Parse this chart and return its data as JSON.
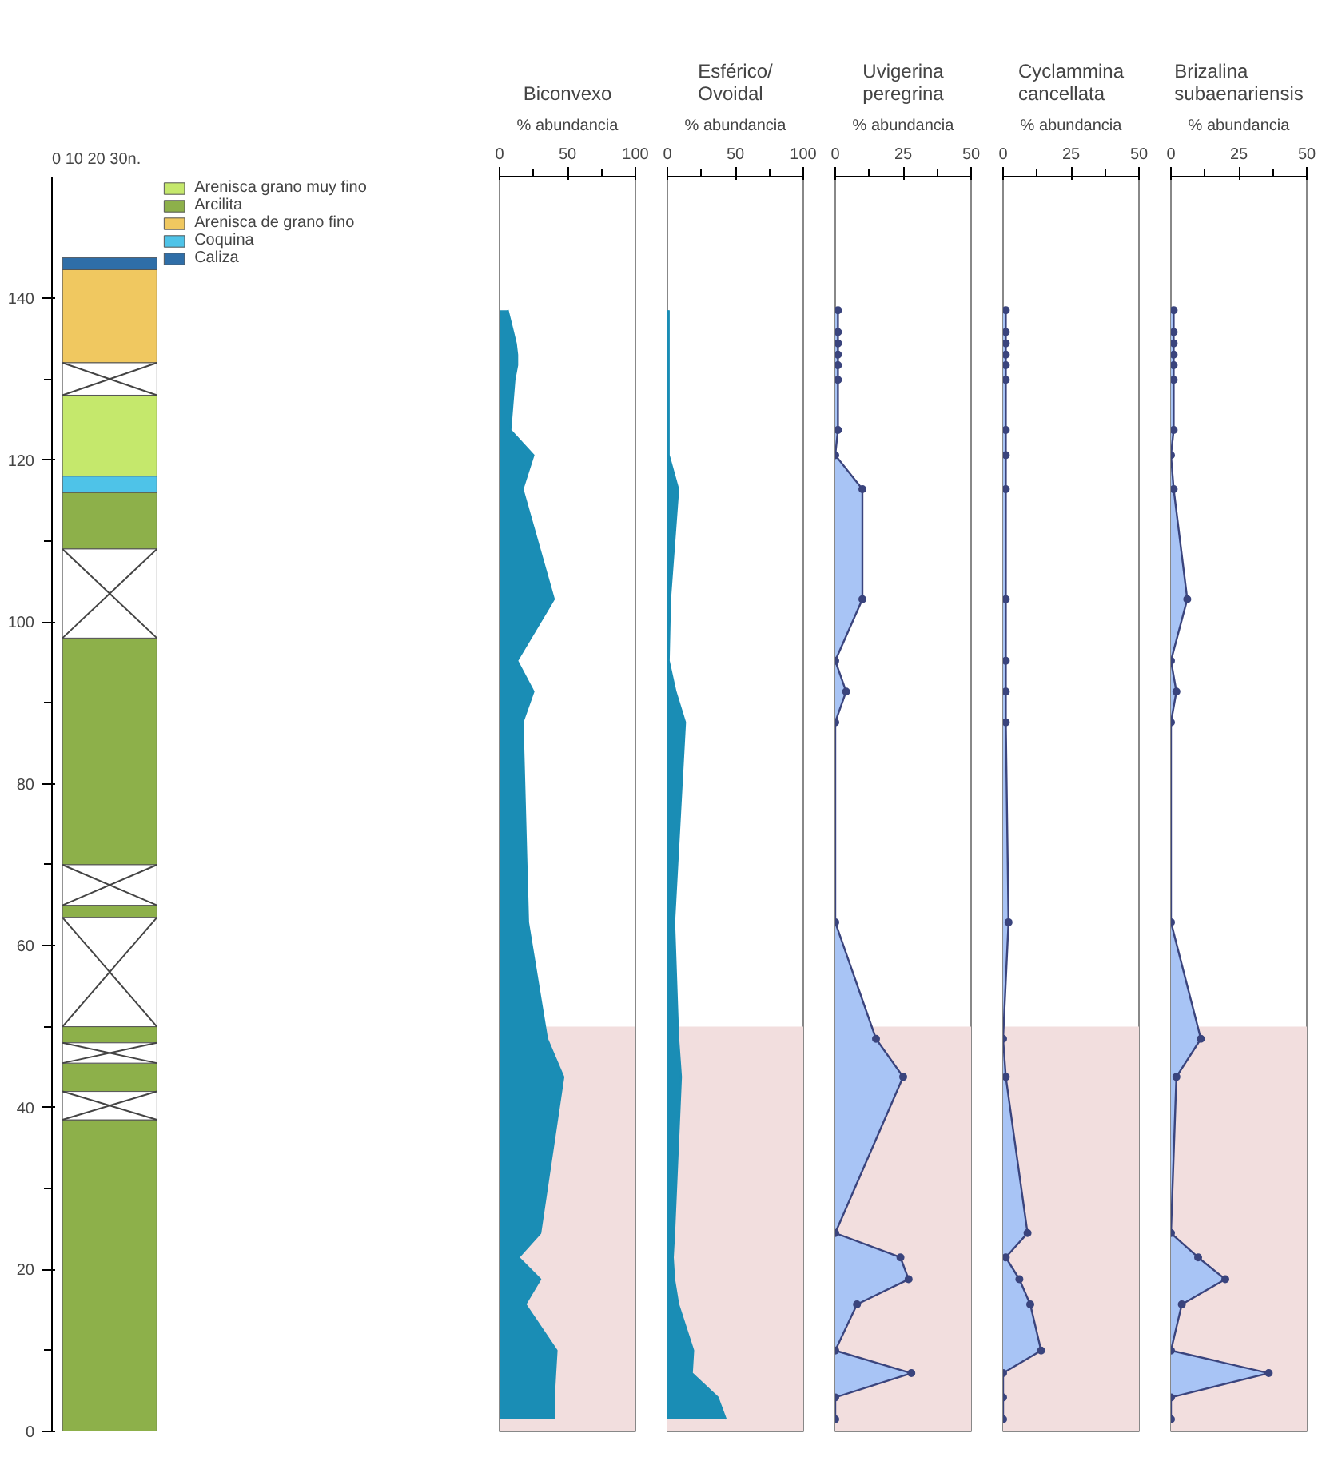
{
  "chart_data": [
    {
      "type": "bar",
      "categories": [
        null
      ],
      "ylim": [
        0,
        155
      ],
      "yticks": [
        0,
        20,
        40,
        60,
        80,
        100,
        120,
        140
      ],
      "tick_labels": "y",
      "legend": "top",
      "annotations": [
        "0   10   20   30n."
      ],
      "series": [
        {
          "name": "Arenisca grano muy fino",
          "color": "#c5e86c",
          "base": [
            118
          ],
          "values": [
            10
          ]
        },
        {
          "name": "Arcilita",
          "color": "#8db04a",
          "base": [
            109
          ],
          "values": [
            7
          ]
        },
        {
          "name": "Arenisca de grano fino",
          "color": "#f0c860",
          "base": [
            132
          ],
          "values": [
            11.5
          ]
        },
        {
          "name": "Coquina",
          "color": "#4ec3e8",
          "base": [
            116
          ],
          "values": [
            2
          ]
        },
        {
          "name": "Caliza",
          "color": "#2f6ea8",
          "base": [
            143.5
          ],
          "values": [
            1.5
          ]
        },
        {
          "color": "#8db04a",
          "base": [
            70
          ],
          "values": [
            28
          ]
        },
        {
          "color": "#8db04a",
          "base": [
            63.5
          ],
          "values": [
            1.5
          ]
        },
        {
          "color": "#8db04a",
          "base": [
            48
          ],
          "values": [
            2
          ]
        },
        {
          "color": "#8db04a",
          "base": [
            42
          ],
          "values": [
            3.5
          ]
        },
        {
          "color": "#8db04a",
          "base": [
            0
          ],
          "values": [
            38.5
          ]
        },
        {
          "color": "#ffffff",
          "base": [
            128
          ],
          "values": [
            4
          ]
        },
        {
          "color": "#ffffff",
          "base": [
            98
          ],
          "values": [
            11
          ]
        },
        {
          "color": "#ffffff",
          "base": [
            65
          ],
          "values": [
            5
          ]
        },
        {
          "color": "#ffffff",
          "base": [
            50
          ],
          "values": [
            13.5
          ]
        },
        {
          "color": "#ffffff",
          "base": [
            45.5
          ],
          "values": [
            2.5
          ]
        },
        {
          "color": "#ffffff",
          "base": [
            38.5
          ],
          "values": [
            3.5
          ]
        }
      ]
    },
    {
      "type": "area",
      "orientation": "horizontal",
      "title": "Biconvexo",
      "xlabel": "% abundancia",
      "xlim": [
        0,
        100
      ],
      "xticks": [
        0,
        50,
        100
      ],
      "ylim": [
        0,
        155
      ],
      "tick_labels": "x",
      "color": "#1a8db5",
      "bands": [
        {
          "axis": "y",
          "from": 0,
          "to": 50,
          "color": "#f2dede"
        }
      ],
      "x": [
        138.5,
        135.8,
        134.4,
        133,
        131.7,
        129.9,
        123.7,
        120.6,
        116.4,
        102.8,
        95.2,
        91.4,
        87.6,
        62.9,
        48.5,
        43.8,
        24.5,
        21.5,
        18.8,
        15.7,
        10,
        7.2,
        4.2,
        1.5
      ],
      "values": [
        6,
        10,
        12,
        13,
        13,
        11,
        8,
        25,
        17,
        40,
        13,
        25,
        17,
        21,
        35,
        47,
        30,
        14,
        30,
        19,
        42,
        41,
        40,
        40
      ]
    },
    {
      "type": "area",
      "orientation": "horizontal",
      "title": "Esférico/ Ovoidal",
      "xlabel": "% abundancia",
      "xlim": [
        0,
        100
      ],
      "xticks": [
        0,
        50,
        100
      ],
      "ylim": [
        0,
        155
      ],
      "tick_labels": "x",
      "color": "#1a8db5",
      "bands": [
        {
          "axis": "y",
          "from": 0,
          "to": 50,
          "color": "#f2dede"
        }
      ],
      "x": [
        138.5,
        135.8,
        134.4,
        133,
        131.7,
        129.9,
        123.7,
        120.6,
        116.4,
        102.8,
        95.2,
        91.4,
        87.6,
        62.9,
        48.5,
        43.8,
        24.5,
        21.5,
        18.8,
        15.7,
        10,
        7.2,
        4.2,
        1.5
      ],
      "values": [
        1,
        1,
        1,
        1,
        1,
        1,
        1,
        1,
        8,
        2,
        1,
        6,
        13,
        5,
        8,
        10,
        5,
        4,
        5,
        8,
        19,
        18,
        37,
        43
      ]
    },
    {
      "type": "area",
      "orientation": "horizontal",
      "title": "Uvigerina peregrina",
      "xlabel": "% abundancia",
      "xlim": [
        0,
        50
      ],
      "xticks": [
        0,
        25,
        50
      ],
      "ylim": [
        0,
        155
      ],
      "tick_labels": "x",
      "color": "#a8c4f5",
      "marker": "circle",
      "bands": [
        {
          "axis": "y",
          "from": 0,
          "to": 50,
          "color": "#f2dede"
        }
      ],
      "x": [
        138.5,
        135.8,
        134.4,
        133,
        131.7,
        129.9,
        123.7,
        120.6,
        116.4,
        102.8,
        95.2,
        91.4,
        87.6,
        62.9,
        48.5,
        43.8,
        24.5,
        21.5,
        18.8,
        15.7,
        10,
        7.2,
        4.2,
        1.5
      ],
      "values": [
        1,
        1,
        1,
        1,
        1,
        1,
        1,
        0,
        10,
        10,
        0,
        4,
        0,
        0,
        15,
        25,
        0,
        24,
        27,
        8,
        0,
        28,
        0,
        0
      ]
    },
    {
      "type": "area",
      "orientation": "horizontal",
      "title": "Cyclammina cancellata",
      "xlabel": "% abundancia",
      "xlim": [
        0,
        50
      ],
      "xticks": [
        0,
        25,
        50
      ],
      "ylim": [
        0,
        155
      ],
      "tick_labels": "x",
      "color": "#a8c4f5",
      "marker": "circle",
      "bands": [
        {
          "axis": "y",
          "from": 0,
          "to": 50,
          "color": "#f2dede"
        }
      ],
      "x": [
        138.5,
        135.8,
        134.4,
        133,
        131.7,
        129.9,
        123.7,
        120.6,
        116.4,
        102.8,
        95.2,
        91.4,
        87.6,
        62.9,
        48.5,
        43.8,
        24.5,
        21.5,
        18.8,
        15.7,
        10,
        7.2,
        4.2,
        1.5
      ],
      "values": [
        1,
        1,
        1,
        1,
        1,
        1,
        1,
        1,
        1,
        1,
        1,
        1,
        1,
        2,
        0,
        1,
        9,
        1,
        6,
        10,
        14,
        0,
        0,
        0
      ]
    },
    {
      "type": "area",
      "orientation": "horizontal",
      "title": "Brizalina subaenariensis",
      "xlabel": "% abundancia",
      "xlim": [
        0,
        50
      ],
      "xticks": [
        0,
        25,
        50
      ],
      "ylim": [
        0,
        155
      ],
      "tick_labels": "x",
      "color": "#a8c4f5",
      "marker": "circle",
      "bands": [
        {
          "axis": "y",
          "from": 0,
          "to": 50,
          "color": "#f2dede"
        }
      ],
      "x": [
        138.5,
        135.8,
        134.4,
        133,
        131.7,
        129.9,
        123.7,
        120.6,
        116.4,
        102.8,
        95.2,
        91.4,
        87.6,
        62.9,
        48.5,
        43.8,
        24.5,
        21.5,
        18.8,
        15.7,
        10,
        7.2,
        4.2,
        1.5
      ],
      "values": [
        1,
        1,
        1,
        1,
        1,
        1,
        1,
        0,
        1,
        6,
        0,
        2,
        0,
        0,
        11,
        2,
        0,
        10,
        20,
        4,
        0,
        36,
        0,
        0
      ]
    }
  ]
}
